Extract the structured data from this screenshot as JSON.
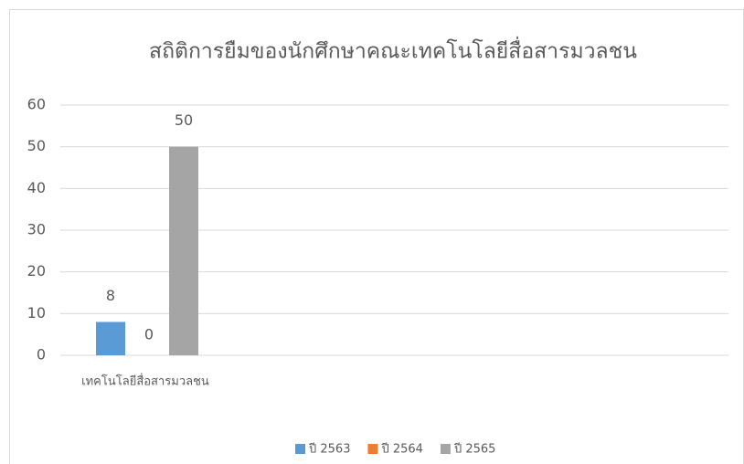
{
  "chart_data": {
    "type": "bar",
    "title": "สถิติการยืมของนักศึกษาคณะเทคโนโลยีสื่อสารมวลชน",
    "categories": [
      "เทคโนโลยีสื่อสารมวลชน"
    ],
    "series": [
      {
        "name": "ปี 2563",
        "color": "#5b9bd5",
        "values": [
          8
        ]
      },
      {
        "name": "ปี 2564",
        "color": "#ed7d31",
        "values": [
          0
        ]
      },
      {
        "name": "ปี 2565",
        "color": "#a5a5a5",
        "values": [
          50
        ]
      }
    ],
    "ylim": [
      0,
      60
    ],
    "yticks": [
      0,
      10,
      20,
      30,
      40,
      50,
      60
    ],
    "grid": true,
    "legend": "bottom"
  }
}
